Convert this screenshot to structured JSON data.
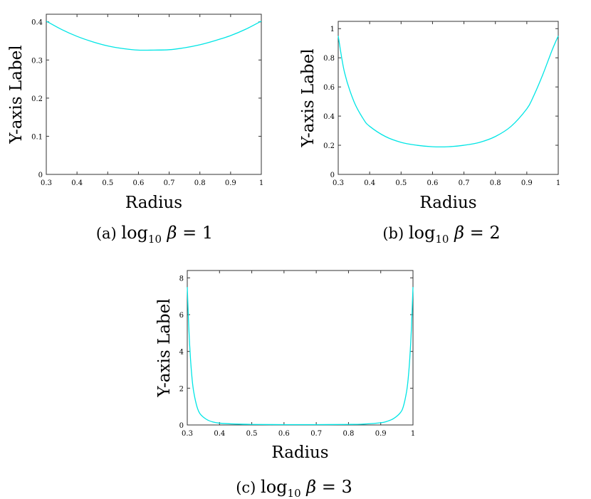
{
  "colors": {
    "curve": "#00e5e5",
    "axis": "#333333"
  },
  "chart_data": [
    {
      "type": "line",
      "panel": "(a)",
      "caption": {
        "prefix": "(a)",
        "func": "log",
        "sub": "10",
        "symbol": "β",
        "rel": "= 1"
      },
      "xlabel": "Radius",
      "ylabel": "Y-axis Label",
      "xlim": [
        0.3,
        1
      ],
      "ylim": [
        0,
        0.42
      ],
      "xticks": [
        "0.3",
        "0.4",
        "0.5",
        "0.6",
        "0.7",
        "0.8",
        "0.9",
        "1"
      ],
      "yticks": [
        "0",
        "0.1",
        "0.2",
        "0.3",
        "0.4"
      ],
      "series": [
        {
          "x": [
            0.3,
            0.35,
            0.4,
            0.45,
            0.5,
            0.55,
            0.6,
            0.65,
            0.7,
            0.75,
            0.8,
            0.85,
            0.9,
            0.95,
            1.0
          ],
          "y": [
            0.402,
            0.38,
            0.362,
            0.348,
            0.337,
            0.33,
            0.326,
            0.326,
            0.327,
            0.332,
            0.34,
            0.351,
            0.364,
            0.381,
            0.402
          ]
        }
      ]
    },
    {
      "type": "line",
      "panel": "(b)",
      "caption": {
        "prefix": "(b)",
        "func": "log",
        "sub": "10",
        "symbol": "β",
        "rel": "= 2"
      },
      "xlabel": "Radius",
      "ylabel": "Y-axis Label",
      "xlim": [
        0.3,
        1
      ],
      "ylim": [
        0,
        1.05
      ],
      "xticks": [
        "0.3",
        "0.4",
        "0.5",
        "0.6",
        "0.7",
        "0.8",
        "0.9",
        "1"
      ],
      "yticks": [
        "0",
        "0.2",
        "0.4",
        "0.6",
        "0.8",
        "1"
      ],
      "series": [
        {
          "x": [
            0.3,
            0.32,
            0.35,
            0.38,
            0.4,
            0.45,
            0.5,
            0.55,
            0.6,
            0.65,
            0.7,
            0.75,
            0.8,
            0.85,
            0.9,
            0.92,
            0.95,
            0.98,
            1.0
          ],
          "y": [
            0.95,
            0.7,
            0.5,
            0.38,
            0.33,
            0.26,
            0.22,
            0.2,
            0.19,
            0.19,
            0.2,
            0.22,
            0.26,
            0.33,
            0.45,
            0.53,
            0.68,
            0.85,
            0.95
          ]
        }
      ]
    },
    {
      "type": "line",
      "panel": "(c)",
      "caption": {
        "prefix": "(c)",
        "func": "log",
        "sub": "10",
        "symbol": "β",
        "rel": "= 3"
      },
      "xlabel": "Radius",
      "ylabel": "Y-axis Label",
      "xlim": [
        0.3,
        1
      ],
      "ylim": [
        0,
        8.4
      ],
      "xticks": [
        "0.3",
        "0.4",
        "0.5",
        "0.6",
        "0.7",
        "0.8",
        "0.9",
        "1"
      ],
      "yticks": [
        "0",
        "2",
        "4",
        "6",
        "8"
      ],
      "series": [
        {
          "x": [
            0.3,
            0.305,
            0.31,
            0.315,
            0.32,
            0.33,
            0.34,
            0.36,
            0.38,
            0.4,
            0.45,
            0.5,
            0.6,
            0.7,
            0.8,
            0.85,
            0.9,
            0.92,
            0.94,
            0.96,
            0.97,
            0.98,
            0.985,
            0.99,
            0.995,
            1.0
          ],
          "y": [
            7.5,
            5.2,
            3.6,
            2.5,
            1.8,
            1.0,
            0.6,
            0.3,
            0.16,
            0.1,
            0.05,
            0.03,
            0.02,
            0.02,
            0.03,
            0.05,
            0.12,
            0.2,
            0.35,
            0.65,
            1.0,
            1.8,
            2.5,
            3.6,
            5.2,
            7.5
          ]
        }
      ]
    }
  ]
}
